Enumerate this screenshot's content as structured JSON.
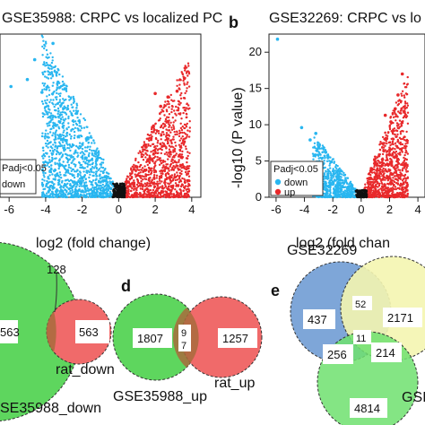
{
  "panels": {
    "a": {
      "title": "GSE35988: CRPC vs localized PC",
      "xlabel": "log2  (fold change)",
      "x_ticks": [
        -6,
        -4,
        -2,
        0,
        2,
        4
      ],
      "legend": {
        "title": "Padj<0.05",
        "items": [
          "down"
        ]
      }
    },
    "b": {
      "letter": "b",
      "title": "GSE32269: CRPC vs lo",
      "xlabel": "log2  (fold chan",
      "ylabel": "-log10 (P value)",
      "x_ticks": [
        -6,
        -4,
        -2,
        0,
        2,
        4
      ],
      "y_ticks": [
        0,
        5,
        10,
        15,
        20
      ],
      "legend": {
        "title": "Padj<0.05",
        "items": [
          "down",
          "up"
        ]
      }
    },
    "c": {
      "top_label": "128",
      "left_value": "563",
      "right_value": "563",
      "right_set": "rat_down",
      "left_set": "SE35988_down"
    },
    "d": {
      "letter": "d",
      "left_value": "1807",
      "overlap_top": "9",
      "overlap_bottom": "7",
      "right_value": "1257",
      "left_set": "GSE35988_up",
      "right_set": "rat_up"
    },
    "e": {
      "letter": "e",
      "set_top": "GSE32269",
      "set_bottom": "GSI",
      "values": {
        "blue_only": "437",
        "blue_yellow": "52",
        "yellow_only": "2171",
        "center": "11",
        "blue_green": "256",
        "yellow_green": "214",
        "green_only": "4814"
      }
    }
  },
  "colors": {
    "down": "#29b6f0",
    "up": "#e8292b",
    "ns": "#111111",
    "venn_green": "#5ed65e",
    "venn_red": "#f06a6a",
    "venn_overlap": "#a86b3c",
    "venn_blue": "#7ea6d8",
    "venn_yellow": "#f4f5b0",
    "venn_green_e": "#6ee06e"
  },
  "chart_data": [
    {
      "type": "scatter",
      "panel": "a",
      "title": "GSE35988: CRPC vs localized PC",
      "xlabel": "log2  (fold change)",
      "ylabel": "",
      "xlim": [
        -6.5,
        4.5
      ],
      "series": [
        {
          "name": "down",
          "points": [
            [
              -5.9,
              9.5
            ],
            [
              -4.6,
              11.8
            ],
            [
              -3.6,
              13.2
            ],
            [
              -5.0,
              10.1
            ],
            [
              -4.2,
              9.0
            ],
            [
              -3.4,
              10.7
            ],
            [
              -2.9,
              9.3
            ],
            [
              -2.3,
              7.2
            ],
            [
              -1.7,
              5.1
            ],
            [
              -1.2,
              3.2
            ],
            [
              -0.7,
              1.4
            ]
          ]
        },
        {
          "name": "up",
          "points": [
            [
              0.5,
              0.9
            ],
            [
              1.0,
              2.6
            ],
            [
              1.5,
              4.3
            ],
            [
              1.9,
              6.1
            ],
            [
              2.3,
              7.8
            ],
            [
              2.7,
              8.6
            ],
            [
              3.2,
              9.1
            ],
            [
              3.6,
              10.2
            ],
            [
              2.0,
              8.9
            ]
          ]
        }
      ]
    },
    {
      "type": "scatter",
      "panel": "b",
      "title": "GSE32269: CRPC vs lo",
      "xlabel": "log2  (fold chan",
      "ylabel": "-log10 (P value)",
      "xlim": [
        -6.5,
        4.5
      ],
      "ylim": [
        0,
        22
      ],
      "series": [
        {
          "name": "down",
          "points": [
            [
              -5.9,
              21.8
            ],
            [
              -4.2,
              9.6
            ],
            [
              -3.6,
              7.9
            ],
            [
              -3.2,
              8.8
            ],
            [
              -3.0,
              6.9
            ],
            [
              -2.5,
              6.2
            ],
            [
              -2.1,
              4.9
            ],
            [
              -1.6,
              3.6
            ],
            [
              -1.1,
              2.3
            ],
            [
              -0.6,
              1.2
            ]
          ]
        },
        {
          "name": "up",
          "points": [
            [
              0.6,
              1.1
            ],
            [
              1.1,
              3.0
            ],
            [
              1.5,
              5.2
            ],
            [
              1.8,
              8.1
            ],
            [
              2.1,
              10.4
            ],
            [
              2.4,
              12.2
            ],
            [
              2.6,
              14.1
            ],
            [
              1.7,
              11.3
            ],
            [
              2.9,
              17.0
            ]
          ]
        }
      ]
    },
    {
      "type": "venn",
      "panel": "c",
      "sets": [
        "SE35988_down",
        "rat_down"
      ],
      "values": {
        "left_only": 563,
        "overlap": 128,
        "right_only": 563
      }
    },
    {
      "type": "venn",
      "panel": "d",
      "sets": [
        "GSE35988_up",
        "rat_up"
      ],
      "values": {
        "left_only": 1807,
        "overlap": 97,
        "right_only": 1257
      }
    },
    {
      "type": "venn",
      "panel": "e",
      "sets": [
        "GSE32269",
        "GSI"
      ],
      "values": {
        "blue_only": 437,
        "blue_yellow": 52,
        "yellow_only": 2171,
        "center": 11,
        "blue_green": 256,
        "yellow_green": 214,
        "green_only": 4814
      }
    }
  ]
}
